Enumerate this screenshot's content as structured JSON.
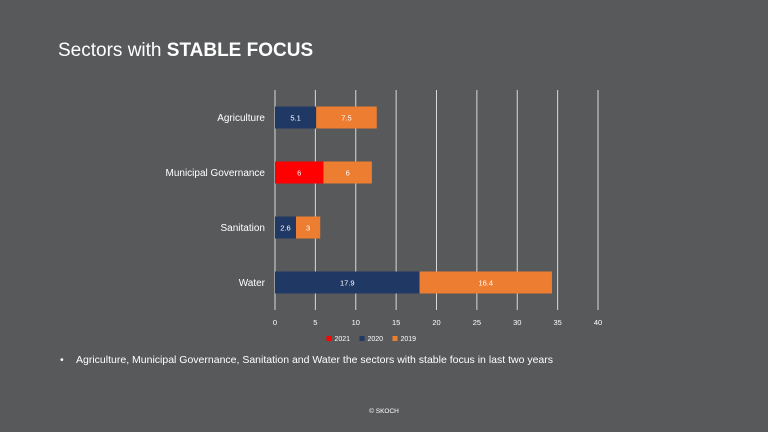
{
  "slide": {
    "title_regular": "Sectors with ",
    "title_bold": "STABLE FOCUS",
    "bullet_text": "Agriculture, Municipal Governance, Sanitation and Water the sectors with stable focus in last two years",
    "footer": "© SKOCH"
  },
  "chart_data": {
    "type": "bar",
    "orientation": "horizontal",
    "stacked": true,
    "categories": [
      "Agriculture",
      "Municipal Governance",
      "Sanitation",
      "Water"
    ],
    "series": [
      {
        "name": "2021",
        "color": "#ff0000",
        "values": [
          0,
          6,
          0,
          0
        ]
      },
      {
        "name": "2020",
        "color": "#203864",
        "values": [
          5.1,
          0,
          2.6,
          17.9
        ]
      },
      {
        "name": "2019",
        "color": "#ed7d31",
        "values": [
          7.5,
          6,
          3,
          16.4
        ]
      }
    ],
    "xlim": [
      0,
      40
    ],
    "x_ticks": [
      0,
      5,
      10,
      15,
      20,
      25,
      30,
      35,
      40
    ],
    "grid": true,
    "legend_position": "bottom",
    "data_labels": true
  }
}
